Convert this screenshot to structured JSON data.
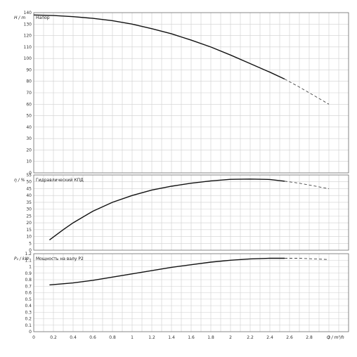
{
  "chart_data": [
    {
      "type": "line",
      "title": "Напор",
      "ylabel": "H / m",
      "ylim": [
        0,
        140
      ],
      "ytick_step": 10,
      "xlim": [
        0,
        3.2
      ],
      "grid": true,
      "series": [
        {
          "style": "solid",
          "x": [
            0,
            0.2,
            0.4,
            0.6,
            0.8,
            1.0,
            1.2,
            1.4,
            1.6,
            1.8,
            2.0,
            2.2,
            2.4,
            2.55
          ],
          "values": [
            138,
            137.5,
            136.5,
            135,
            133,
            130,
            126,
            121.5,
            116,
            110,
            103,
            95.5,
            88,
            82
          ]
        },
        {
          "style": "dashed",
          "x": [
            2.55,
            2.7,
            2.85,
            3.0
          ],
          "values": [
            82,
            75,
            67.5,
            60
          ]
        }
      ]
    },
    {
      "type": "line",
      "title": "Гидравлический КПД",
      "ylabel": "η / %",
      "ylim": [
        0,
        55
      ],
      "ytick_step": 5,
      "xlim": [
        0,
        3.2
      ],
      "grid": true,
      "series": [
        {
          "style": "solid",
          "x": [
            0.16,
            0.3,
            0.4,
            0.6,
            0.8,
            1.0,
            1.2,
            1.4,
            1.6,
            1.8,
            2.0,
            2.2,
            2.4,
            2.55
          ],
          "values": [
            7.5,
            15,
            20,
            28.5,
            35,
            40,
            44,
            46.8,
            49,
            50.7,
            51.8,
            52,
            51.7,
            50.5
          ]
        },
        {
          "style": "dashed",
          "x": [
            2.55,
            2.7,
            2.85,
            3.0
          ],
          "values": [
            50.5,
            49,
            47,
            45
          ]
        }
      ]
    },
    {
      "type": "line",
      "title": "Мощность на валу P2",
      "ylabel": "P₂ / kW",
      "ylim": [
        0,
        1.2
      ],
      "ytick_step": 0.1,
      "xlim": [
        0,
        3.2
      ],
      "xlabel": "Q / m³/h",
      "xticks": [
        0,
        0.2,
        0.4,
        0.6,
        0.8,
        1,
        1.2,
        1.4,
        1.6,
        1.8,
        2,
        2.2,
        2.4,
        2.6,
        2.8,
        3
      ],
      "grid": true,
      "series": [
        {
          "style": "solid",
          "x": [
            0.16,
            0.4,
            0.6,
            0.8,
            1.0,
            1.2,
            1.4,
            1.6,
            1.8,
            2.0,
            2.2,
            2.4,
            2.55
          ],
          "values": [
            0.72,
            0.75,
            0.79,
            0.84,
            0.89,
            0.94,
            0.99,
            1.03,
            1.07,
            1.1,
            1.12,
            1.13,
            1.13
          ]
        },
        {
          "style": "dashed",
          "x": [
            2.55,
            2.7,
            2.85,
            3.0
          ],
          "values": [
            1.13,
            1.13,
            1.12,
            1.11
          ]
        }
      ]
    }
  ]
}
